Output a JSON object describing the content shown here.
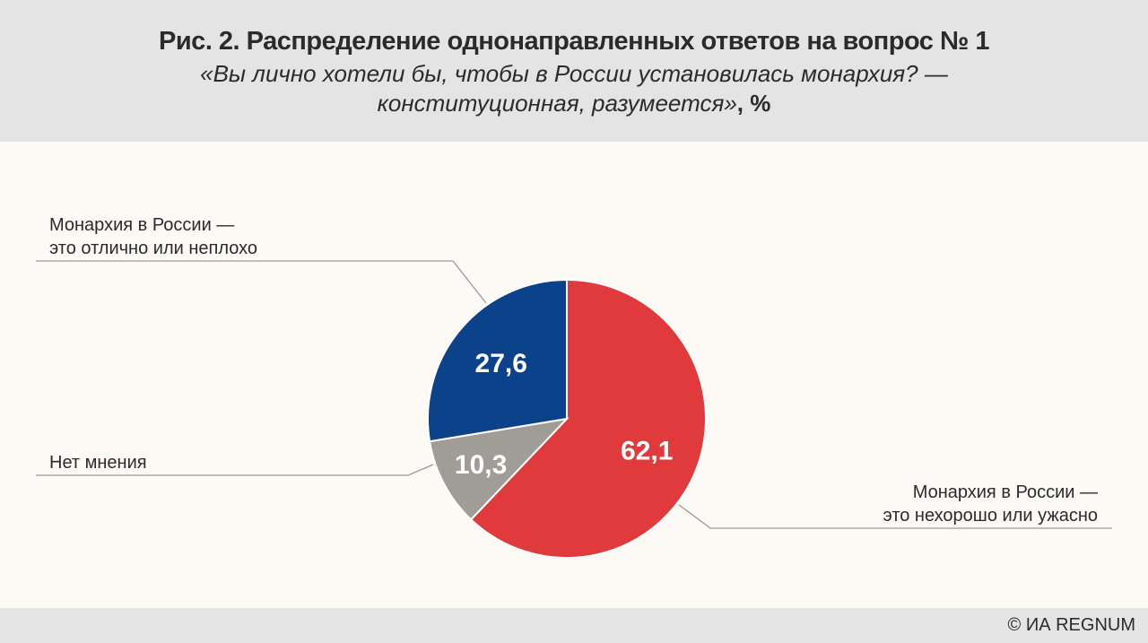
{
  "header": {
    "title": "Рис. 2. Распределение однонаправленных ответов на вопрос  № 1",
    "subtitle_line1": "«Вы лично хотели бы, чтобы в России установилась монархия? —",
    "subtitle_line2": "конституционная, разумеется»",
    "unit": ", %"
  },
  "footer": {
    "credit": "© ИА REGNUM"
  },
  "chart_data": {
    "type": "pie",
    "title": "Рис. 2. Распределение однонаправленных ответов на вопрос  № 1",
    "slices": [
      {
        "label_line1": "Монархия в России —",
        "label_line2": "это нехорошо или ужасно",
        "value": 62.1,
        "value_label": "62,1",
        "color": "#e03a3c"
      },
      {
        "label_line1": "Нет мнения",
        "label_line2": "",
        "value": 10.3,
        "value_label": "10,3",
        "color": "#a09c96"
      },
      {
        "label_line1": "Монархия в России —",
        "label_line2": "это отлично или неплохо",
        "value": 27.6,
        "value_label": "27,6",
        "color": "#0c4289"
      }
    ]
  }
}
